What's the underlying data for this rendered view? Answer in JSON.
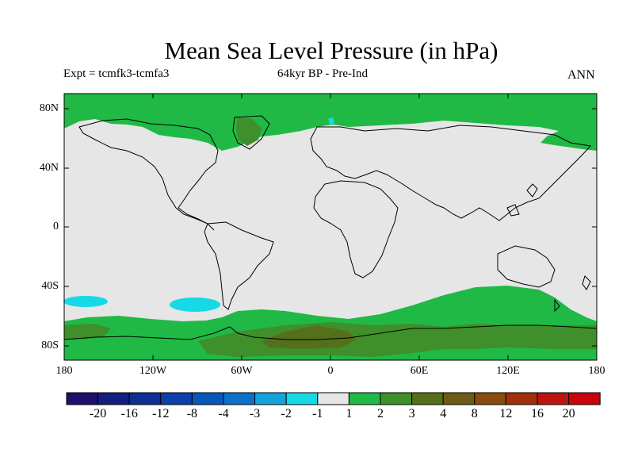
{
  "title": "Mean Sea Level Pressure (in hPa)",
  "subtitle_left": "Expt = tcmfk3-tcmfa3",
  "subtitle_center": "64kyr BP - Pre-Ind",
  "subtitle_right": "ANN",
  "lat_ticks": [
    "80N",
    "40N",
    "0",
    "40S",
    "80S"
  ],
  "lon_ticks": [
    "180",
    "120W",
    "60W",
    "0",
    "60E",
    "120E",
    "180"
  ],
  "colorbar": {
    "colors": [
      "#1f0f6e",
      "#141e7f",
      "#0d2f93",
      "#0b41a8",
      "#0a57bb",
      "#0a72c8",
      "#14a3d8",
      "#16d9e6",
      "#e6e6e6",
      "#20b945",
      "#3f8f2b",
      "#55701a",
      "#6f5b15",
      "#8a4b0f",
      "#a3300c",
      "#bc1510",
      "#c9040b"
    ],
    "labels": [
      "-20",
      "-16",
      "-12",
      "-8",
      "-4",
      "-3",
      "-2",
      "-1",
      "1",
      "2",
      "3",
      "4",
      "8",
      "12",
      "16",
      "20"
    ]
  },
  "map_colors": {
    "neutral": "#e6e6e6",
    "pos_1_2": "#20b945",
    "pos_2_3": "#3f8f2b",
    "pos_3_4": "#55701a",
    "neg_2_1": "#16d9e6"
  },
  "legend_regions": []
}
